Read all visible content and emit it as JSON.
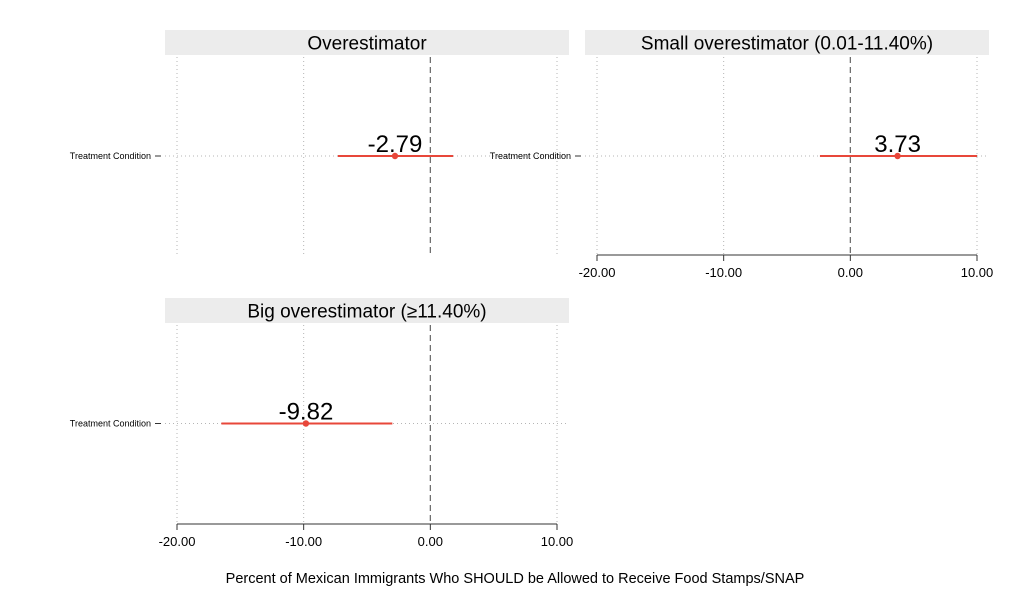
{
  "chart_data": {
    "type": "coefficient",
    "xlabel": "Percent of Mexican Immigrants Who SHOULD be Allowed to Receive Food Stamps/SNAP",
    "xlim": [
      -20,
      10
    ],
    "x_ticks": [
      -20,
      -10,
      0,
      10
    ],
    "x_tick_labels": [
      "-20.00",
      "-10.00",
      "0.00",
      "10.00"
    ],
    "reference_line": 0,
    "grid": true,
    "series_color": "#e8473a",
    "facets": [
      {
        "title": "Overestimator",
        "y_category": "Treatment Condition",
        "estimate": -2.79,
        "ci": [
          -7.3,
          1.8
        ],
        "label": "-2.79",
        "show_x_axis": false
      },
      {
        "title": "Small overestimator (0.01-11.40%)",
        "y_category": "Treatment Condition",
        "estimate": 3.73,
        "ci": [
          -2.4,
          10.0
        ],
        "label": "3.73",
        "show_x_axis": true
      },
      {
        "title": "Big overestimator (≥11.40%)",
        "y_category": "Treatment Condition",
        "estimate": -9.82,
        "ci": [
          -16.5,
          -3.0
        ],
        "label": "-9.82",
        "show_x_axis": true
      }
    ]
  }
}
